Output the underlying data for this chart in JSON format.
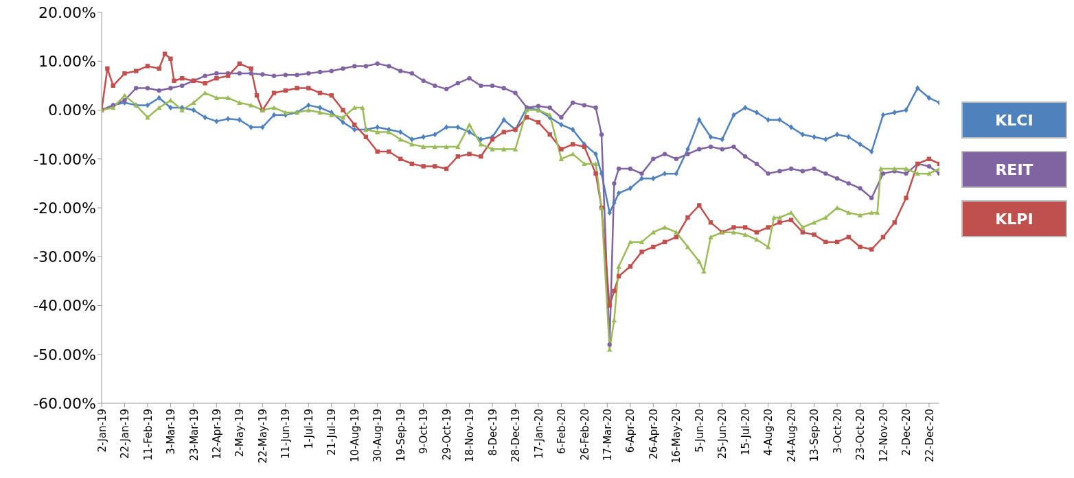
{
  "chart_data": {
    "type": "line",
    "x": [
      "2019-01-02",
      "2019-01-12",
      "2019-01-22",
      "2019-02-01",
      "2019-02-11",
      "2019-02-21",
      "2019-03-03",
      "2019-03-13",
      "2019-03-23",
      "2019-04-02",
      "2019-04-12",
      "2019-04-22",
      "2019-05-02",
      "2019-05-12",
      "2019-05-22",
      "2019-06-01",
      "2019-06-11",
      "2019-06-21",
      "2019-07-01",
      "2019-07-11",
      "2019-07-21",
      "2019-07-31",
      "2019-08-10",
      "2019-08-20",
      "2019-08-30",
      "2019-09-09",
      "2019-09-19",
      "2019-09-29",
      "2019-10-09",
      "2019-10-19",
      "2019-10-29",
      "2019-11-08",
      "2019-11-18",
      "2019-11-28",
      "2019-12-08",
      "2019-12-18",
      "2019-12-28",
      "2020-01-07",
      "2020-01-17",
      "2020-01-27",
      "2020-02-06",
      "2020-02-16",
      "2020-02-26",
      "2020-03-07",
      "2020-03-12",
      "2020-03-19",
      "2020-03-23",
      "2020-03-27",
      "2020-04-06",
      "2020-04-16",
      "2020-04-26",
      "2020-05-06",
      "2020-05-16",
      "2020-05-26",
      "2020-06-05",
      "2020-06-15",
      "2020-06-25",
      "2020-07-05",
      "2020-07-15",
      "2020-07-25",
      "2020-08-04",
      "2020-08-14",
      "2020-08-24",
      "2020-09-03",
      "2020-09-13",
      "2020-09-23",
      "2020-10-03",
      "2020-10-13",
      "2020-10-23",
      "2020-11-02",
      "2020-11-12",
      "2020-11-22",
      "2020-12-02",
      "2020-12-12",
      "2020-12-22",
      "2020-12-31"
    ],
    "series": [
      {
        "name": "KLCI",
        "color": "#4f81bd",
        "marker": "diamond",
        "values": [
          0,
          1,
          1.5,
          1,
          1,
          2.5,
          0.5,
          0.5,
          0,
          -1.5,
          -2.3,
          -1.8,
          -2,
          -3.5,
          -3.5,
          -1,
          -1,
          -0.5,
          1,
          0.5,
          -0.5,
          -2.5,
          -4,
          -4,
          -3.5,
          -4,
          -4.5,
          -6,
          -5.5,
          -5,
          -3.5,
          -3.5,
          -4.5,
          -6,
          -5.5,
          -2,
          -4,
          0.5,
          0,
          -1.5,
          -3,
          -4,
          -7,
          -9,
          -13,
          -21,
          -19,
          -17,
          -16,
          -14,
          -14,
          -13,
          -13,
          -8,
          -2,
          -5.5,
          -6,
          -1,
          0.5,
          -0.5,
          -2,
          -2,
          -3.5,
          -5,
          -5.5,
          -6,
          -5,
          -5.5,
          -7,
          -8.5,
          -1,
          -0.5,
          0,
          4.5,
          2.5,
          1.5
        ]
      },
      {
        "name": "REIT",
        "color": "#8064a2",
        "marker": "circle",
        "values": [
          0,
          1,
          2,
          4.5,
          4.5,
          4,
          4.5,
          5,
          6,
          7,
          7.5,
          7.5,
          7.5,
          7.5,
          7.3,
          7,
          7.2,
          7.2,
          7.5,
          7.8,
          8,
          8.5,
          9,
          9,
          9.5,
          9,
          8,
          7.5,
          6,
          5,
          4.3,
          5.5,
          6.5,
          5,
          5,
          4.5,
          3.5,
          0.5,
          0.8,
          0.5,
          -1.5,
          1.5,
          1,
          0.5,
          -5,
          -48,
          -15,
          -12,
          -12,
          -13,
          -10,
          -9,
          -10,
          -9,
          -8,
          -7.5,
          -8,
          -7.5,
          -9.5,
          -11,
          -13,
          -12.5,
          -12,
          -12.5,
          -12,
          -13,
          -14,
          -15,
          -16,
          -18,
          -13,
          -12.5,
          -13,
          -11,
          -11.5,
          -13
        ]
      },
      {
        "name": "KLPI",
        "color": "#c0504d",
        "marker": "square",
        "x": [
          "2019-01-02",
          "2019-01-07",
          "2019-01-12",
          "2019-01-22",
          "2019-02-01",
          "2019-02-11",
          "2019-02-21",
          "2019-02-26",
          "2019-03-03",
          "2019-03-06",
          "2019-03-13",
          "2019-03-23",
          "2019-04-02",
          "2019-04-12",
          "2019-04-22",
          "2019-05-02",
          "2019-05-12",
          "2019-05-17",
          "2019-05-22",
          "2019-06-01",
          "2019-06-11",
          "2019-06-21",
          "2019-07-01",
          "2019-07-11",
          "2019-07-21",
          "2019-07-31",
          "2019-08-10",
          "2019-08-20",
          "2019-08-30",
          "2019-09-09",
          "2019-09-19",
          "2019-09-29",
          "2019-10-09",
          "2019-10-19",
          "2019-10-29",
          "2019-11-08",
          "2019-11-18",
          "2019-11-28",
          "2019-12-08",
          "2019-12-18",
          "2019-12-28",
          "2020-01-07",
          "2020-01-17",
          "2020-01-27",
          "2020-02-06",
          "2020-02-16",
          "2020-02-26",
          "2020-03-07",
          "2020-03-12",
          "2020-03-19",
          "2020-03-23",
          "2020-03-27",
          "2020-04-06",
          "2020-04-16",
          "2020-04-26",
          "2020-05-06",
          "2020-05-16",
          "2020-05-26",
          "2020-06-05",
          "2020-06-15",
          "2020-06-25",
          "2020-07-05",
          "2020-07-15",
          "2020-07-25",
          "2020-08-04",
          "2020-08-14",
          "2020-08-24",
          "2020-09-03",
          "2020-09-13",
          "2020-09-23",
          "2020-10-03",
          "2020-10-13",
          "2020-10-23",
          "2020-11-02",
          "2020-11-12",
          "2020-11-22",
          "2020-12-02",
          "2020-12-12",
          "2020-12-22",
          "2020-12-31"
        ],
        "values": [
          0,
          8.5,
          5,
          7.5,
          8,
          9,
          8.5,
          11.5,
          10.5,
          6,
          6.5,
          6,
          5.5,
          6.5,
          7,
          9.5,
          8.5,
          3,
          0,
          3.5,
          4,
          4.5,
          4.5,
          3.5,
          3,
          0,
          -3,
          -5.5,
          -8.5,
          -8.5,
          -10,
          -11,
          -11.5,
          -11.5,
          -12,
          -9.5,
          -9,
          -9.5,
          -6,
          -4.5,
          -4,
          -1.5,
          -2.5,
          -5,
          -8,
          -7,
          -7.5,
          -13,
          -20,
          -40,
          -37,
          -34,
          -32,
          -29,
          -28,
          -27,
          -26,
          -22,
          -19.5,
          -23,
          -25,
          -24,
          -24,
          -25,
          -24,
          -23,
          -22.5,
          -25,
          -25.5,
          -27,
          -27,
          -26,
          -28,
          -28.5,
          -26,
          -23,
          -18,
          -11,
          -10,
          -11
        ]
      },
      {
        "color": "#9bbb59",
        "marker": "triangle",
        "x": [
          "2019-01-02",
          "2019-01-12",
          "2019-01-22",
          "2019-02-01",
          "2019-02-11",
          "2019-02-21",
          "2019-03-03",
          "2019-03-13",
          "2019-03-23",
          "2019-04-02",
          "2019-04-12",
          "2019-04-22",
          "2019-05-02",
          "2019-05-12",
          "2019-05-22",
          "2019-06-01",
          "2019-06-11",
          "2019-06-21",
          "2019-07-01",
          "2019-07-11",
          "2019-07-21",
          "2019-07-31",
          "2019-08-10",
          "2019-08-17",
          "2019-08-20",
          "2019-08-30",
          "2019-09-09",
          "2019-09-19",
          "2019-09-29",
          "2019-10-09",
          "2019-10-19",
          "2019-10-29",
          "2019-11-08",
          "2019-11-18",
          "2019-11-28",
          "2019-12-08",
          "2019-12-18",
          "2019-12-28",
          "2020-01-07",
          "2020-01-17",
          "2020-01-27",
          "2020-02-06",
          "2020-02-16",
          "2020-02-26",
          "2020-03-07",
          "2020-03-12",
          "2020-03-19",
          "2020-03-23",
          "2020-03-27",
          "2020-04-06",
          "2020-04-16",
          "2020-04-26",
          "2020-05-06",
          "2020-05-16",
          "2020-05-26",
          "2020-06-05",
          "2020-06-09",
          "2020-06-15",
          "2020-06-25",
          "2020-07-05",
          "2020-07-15",
          "2020-07-25",
          "2020-08-04",
          "2020-08-09",
          "2020-08-14",
          "2020-08-24",
          "2020-09-03",
          "2020-09-13",
          "2020-09-23",
          "2020-10-03",
          "2020-10-13",
          "2020-10-23",
          "2020-11-02",
          "2020-11-07",
          "2020-11-10",
          "2020-11-22",
          "2020-12-02",
          "2020-12-12",
          "2020-12-22",
          "2020-12-31"
        ],
        "values": [
          0,
          0.5,
          3,
          1,
          -1.5,
          0.5,
          2,
          0,
          1.5,
          3.5,
          2.5,
          2.5,
          1.5,
          1,
          0,
          0.5,
          -0.5,
          -0.5,
          0,
          -0.5,
          -1,
          -1.5,
          0.5,
          0.5,
          -4,
          -4.5,
          -4.5,
          -6,
          -7,
          -7.5,
          -7.5,
          -7.5,
          -7.5,
          -3,
          -7,
          -8,
          -8,
          -8,
          0,
          0,
          -1,
          -10,
          -9,
          -11,
          -11,
          -20,
          -49,
          -43,
          -32,
          -27,
          -27,
          -25,
          -24,
          -25,
          -28,
          -31,
          -33,
          -26,
          -25,
          -25,
          -25.5,
          -26.5,
          -28,
          -22,
          -22,
          -21,
          -24,
          -23,
          -22,
          -20,
          -21,
          -21.5,
          -21,
          -21,
          -12,
          -12,
          -12,
          -13,
          -13,
          -12
        ]
      }
    ],
    "xlim": [
      "2019-01-02",
      "2020-12-31"
    ],
    "xticks": [
      {
        "value": "2019-01-02",
        "label": "2-Jan-19"
      },
      {
        "value": "2019-01-22",
        "label": "22-Jan-19"
      },
      {
        "value": "2019-02-11",
        "label": "11-Feb-19"
      },
      {
        "value": "2019-03-03",
        "label": "3-Mar-19"
      },
      {
        "value": "2019-03-23",
        "label": "23-Mar-19"
      },
      {
        "value": "2019-04-12",
        "label": "12-Apr-19"
      },
      {
        "value": "2019-05-02",
        "label": "2-May-19"
      },
      {
        "value": "2019-05-22",
        "label": "22-May-19"
      },
      {
        "value": "2019-06-11",
        "label": "11-Jun-19"
      },
      {
        "value": "2019-07-01",
        "label": "1-Jul-19"
      },
      {
        "value": "2019-07-21",
        "label": "21-Jul-19"
      },
      {
        "value": "2019-08-10",
        "label": "10-Aug-19"
      },
      {
        "value": "2019-08-30",
        "label": "30-Aug-19"
      },
      {
        "value": "2019-09-19",
        "label": "19-Sep-19"
      },
      {
        "value": "2019-10-09",
        "label": "9-Oct-19"
      },
      {
        "value": "2019-10-29",
        "label": "29-Oct-19"
      },
      {
        "value": "2019-11-18",
        "label": "18-Nov-19"
      },
      {
        "value": "2019-12-08",
        "label": "8-Dec-19"
      },
      {
        "value": "2019-12-28",
        "label": "28-Dec-19"
      },
      {
        "value": "2020-01-17",
        "label": "17-Jan-20"
      },
      {
        "value": "2020-02-06",
        "label": "6-Feb-20"
      },
      {
        "value": "2020-02-26",
        "label": "26-Feb-20"
      },
      {
        "value": "2020-03-17",
        "label": "17-Mar-20"
      },
      {
        "value": "2020-04-06",
        "label": "6-Apr-20"
      },
      {
        "value": "2020-04-26",
        "label": "26-Apr-20"
      },
      {
        "value": "2020-05-16",
        "label": "16-May-20"
      },
      {
        "value": "2020-06-05",
        "label": "5-Jun-20"
      },
      {
        "value": "2020-06-25",
        "label": "25-Jun-20"
      },
      {
        "value": "2020-07-15",
        "label": "15-Jul-20"
      },
      {
        "value": "2020-08-04",
        "label": "4-Aug-20"
      },
      {
        "value": "2020-08-24",
        "label": "24-Aug-20"
      },
      {
        "value": "2020-09-13",
        "label": "13-Sep-20"
      },
      {
        "value": "2020-10-03",
        "label": "3-Oct-20"
      },
      {
        "value": "2020-10-23",
        "label": "23-Oct-20"
      },
      {
        "value": "2020-11-12",
        "label": "12-Nov-20"
      },
      {
        "value": "2020-12-02",
        "label": "2-Dec-20"
      },
      {
        "value": "2020-12-22",
        "label": "22-Dec-20"
      }
    ],
    "ylim": [
      -60,
      20
    ],
    "yticks": [
      {
        "value": -60,
        "label": "-60.00%"
      },
      {
        "value": -50,
        "label": "-50.00%"
      },
      {
        "value": -40,
        "label": "-40.00%"
      },
      {
        "value": -30,
        "label": "-30.00%"
      },
      {
        "value": -20,
        "label": "-20.00%"
      },
      {
        "value": -10,
        "label": "-10.00%"
      },
      {
        "value": 0,
        "label": "0.00%"
      },
      {
        "value": 10,
        "label": "10.00%"
      },
      {
        "value": 20,
        "label": "20.00%"
      }
    ],
    "grid": false,
    "legend": "right",
    "line_style": "solid"
  }
}
